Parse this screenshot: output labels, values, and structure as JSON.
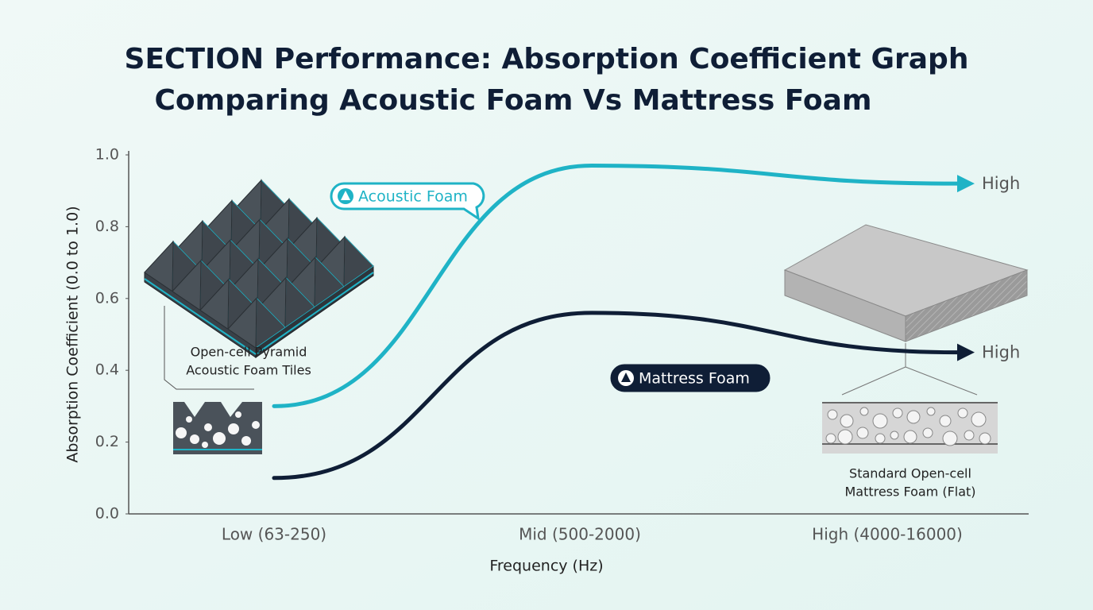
{
  "chart_data": {
    "type": "line",
    "title": [
      "SECTION Performance: Absorption Coefficient Graph",
      "Comparing Acoustic Foam Vs Mattress Foam"
    ],
    "x_label": "Frequency (Hz)",
    "y_label": "Absorption Coefficient (0.0 to 1.0)",
    "categories": [
      "Low (63-250)",
      "Mid (500-2000)",
      "High (4000-16000)"
    ],
    "series": [
      {
        "name": "Acoustic Foam",
        "color": "#1fb3c6",
        "values": [
          0.3,
          0.97,
          0.92
        ],
        "end_label": "High"
      },
      {
        "name": "Mattress Foam",
        "color": "#0f1e36",
        "values": [
          0.1,
          0.56,
          0.45
        ],
        "end_label": "High"
      }
    ],
    "ylim": [
      0,
      1
    ],
    "yticks": [
      {
        "value": 0,
        "label": "0.0"
      },
      0.2,
      0.4,
      0.6,
      0.8,
      {
        "value": 1,
        "label": "1.0"
      }
    ],
    "illustrations": [
      {
        "caption": [
          "Open-cell Pyramid",
          "Acoustic Foam Tiles"
        ]
      },
      {
        "caption": [
          "Standard Open-cell",
          "Mattress Foam (Flat)"
        ]
      }
    ]
  }
}
